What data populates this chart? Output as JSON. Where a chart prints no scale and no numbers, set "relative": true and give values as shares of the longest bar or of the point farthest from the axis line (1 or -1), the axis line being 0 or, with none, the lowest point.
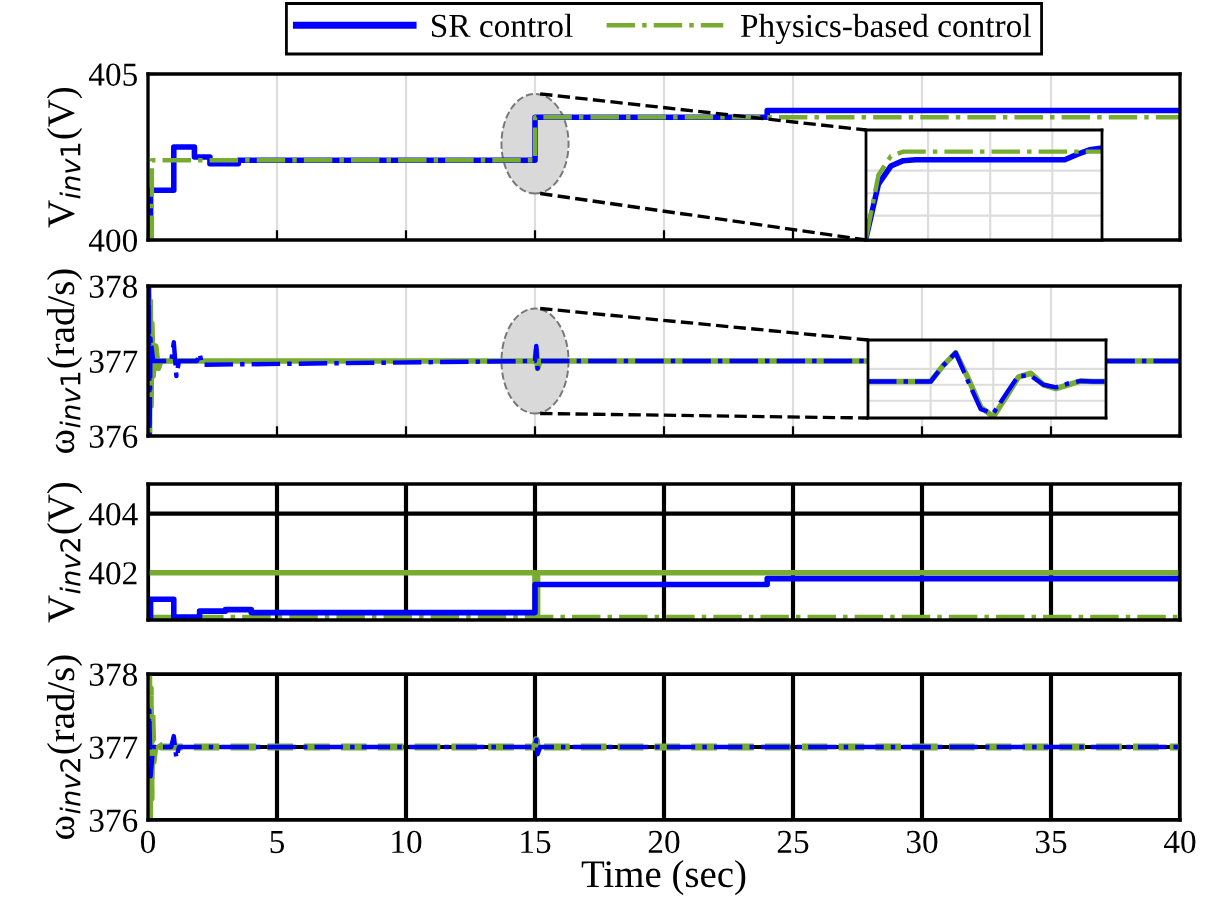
{
  "chart_data": [
    {
      "type": "line",
      "ylabel": "V$_{inv1}$(V)",
      "xlim": [
        0,
        40
      ],
      "xticks": [
        {
          "value": 0,
          "label": null
        },
        {
          "value": 5,
          "label": null
        },
        {
          "value": 10,
          "label": null
        },
        {
          "value": 15,
          "label": null
        },
        {
          "value": 20,
          "label": null
        },
        {
          "value": 25,
          "label": null
        },
        {
          "value": 30,
          "label": null
        },
        {
          "value": 35,
          "label": null
        },
        {
          "value": 40,
          "label": null
        }
      ],
      "ylim": [
        400,
        405
      ],
      "yticks": [
        400,
        405
      ],
      "tick_labels": "y",
      "grid": true,
      "legend": "top",
      "series": [
        {
          "name": "SR control",
          "type": "step",
          "color": "#0000ff",
          "line_style": "solid",
          "x": [
            0,
            0.1,
            1.0,
            1.8,
            2.4,
            3.5,
            15.0,
            24.0,
            40
          ],
          "values": [
            400,
            401.5,
            402.8,
            402.5,
            402.3,
            402.4,
            403.7,
            403.9,
            403.9
          ]
        },
        {
          "name": "Physics-based control",
          "type": "step",
          "color": "#77ac30",
          "line_style": "dashdot",
          "x": [
            0,
            0.15,
            15.0,
            40
          ],
          "values": [
            400,
            402.4,
            403.7,
            403.7
          ]
        }
      ]
    },
    {
      "type": "line",
      "ylabel": "ω$_{inv1}$(rad/s)",
      "xlim": [
        0,
        40
      ],
      "xticks": [
        {
          "value": 0,
          "label": null
        },
        {
          "value": 5,
          "label": null
        },
        {
          "value": 10,
          "label": null
        },
        {
          "value": 15,
          "label": null
        },
        {
          "value": 20,
          "label": null
        },
        {
          "value": 25,
          "label": null
        },
        {
          "value": 30,
          "label": null
        },
        {
          "value": 35,
          "label": null
        },
        {
          "value": 40,
          "label": null
        }
      ],
      "ylim": [
        376,
        378
      ],
      "yticks": [
        376,
        377,
        378
      ],
      "tick_labels": "y",
      "grid": true,
      "series": [
        {
          "name": "Physics-based control",
          "color": "#77ac30",
          "line_style": "solid",
          "x": [
            0,
            0.03,
            0.06,
            0.09,
            0.12,
            0.15,
            0.2,
            0.3,
            0.4,
            0.5,
            15.0,
            15.05,
            15.1,
            15.2,
            40
          ],
          "values": [
            377,
            378,
            376,
            377.8,
            376.4,
            377.5,
            376.8,
            377.2,
            376.9,
            377,
            377,
            377.15,
            376.9,
            377,
            377
          ]
        },
        {
          "name": "SR control",
          "color": "#0000ff",
          "line_style": "dashdot",
          "x": [
            0,
            0.03,
            0.06,
            0.1,
            0.2,
            0.9,
            1.0,
            1.1,
            1.2,
            1.9,
            2.0,
            2.1,
            15.0,
            15.05,
            15.1,
            15.2,
            40
          ],
          "values": [
            377,
            378,
            376,
            377.3,
            377,
            377,
            377.25,
            376.8,
            377,
            377,
            377.1,
            376.95,
            377,
            377.2,
            376.9,
            377,
            377
          ]
        }
      ]
    },
    {
      "type": "line",
      "ylabel": "V$_{inv2}$(V)",
      "xlim": [
        0,
        40
      ],
      "xticks": [
        {
          "value": 0,
          "label": null
        },
        {
          "value": 5,
          "label": null
        },
        {
          "value": 10,
          "label": null
        },
        {
          "value": 15,
          "label": null
        },
        {
          "value": 20,
          "label": null
        },
        {
          "value": 25,
          "label": null
        },
        {
          "value": 30,
          "label": null
        },
        {
          "value": 35,
          "label": null
        },
        {
          "value": 40,
          "label": null
        }
      ],
      "ylim": [
        400.4,
        405
      ],
      "yticks": [
        402,
        404
      ],
      "tick_labels": "y",
      "grid": true,
      "series": [
        {
          "type": "step",
          "color": "#77ac30",
          "line_style": "solid",
          "x": [
            0,
            15.0,
            15.1,
            40
          ],
          "values": [
            402,
            400.5,
            402,
            402
          ]
        },
        {
          "name": "Physics-based control",
          "color": "#77ac30",
          "line_style": "dashdot",
          "x": [
            0,
            40
          ],
          "values": [
            400.5,
            400.5
          ]
        },
        {
          "name": "SR control",
          "type": "step",
          "color": "#0000ff",
          "line_style": "solid",
          "x": [
            0,
            0.1,
            1.0,
            2.0,
            3.0,
            4.0,
            15.0,
            24.0,
            40
          ],
          "values": [
            400.5,
            401.1,
            400.5,
            400.7,
            400.75,
            400.65,
            401.6,
            401.8,
            401.8
          ]
        }
      ]
    },
    {
      "type": "line",
      "ylabel": "ω$_{inv2}$(rad/s)",
      "xlabel": "Time (sec)",
      "xlim": [
        0,
        40
      ],
      "xticks": [
        0,
        5,
        10,
        15,
        20,
        25,
        30,
        35,
        40
      ],
      "ylim": [
        376,
        378
      ],
      "yticks": [
        376,
        377,
        378
      ],
      "grid": true,
      "series": [
        {
          "name": "Physics-based control",
          "color": "#77ac30",
          "line_style": "dashed",
          "x": [
            0,
            0.03,
            0.06,
            0.09,
            0.12,
            0.15,
            0.2,
            0.3,
            0.5,
            15.0,
            15.05,
            15.1,
            15.2,
            40
          ],
          "values": [
            377,
            378,
            376,
            377.8,
            376.3,
            377.5,
            376.8,
            377.1,
            377,
            377,
            377.1,
            376.95,
            377,
            377
          ]
        },
        {
          "name": "SR control",
          "color": "#0000ff",
          "line_style": "dashdot",
          "x": [
            0,
            0.05,
            0.1,
            0.2,
            0.9,
            1.0,
            1.1,
            1.2,
            15.0,
            15.05,
            15.1,
            15.2,
            40
          ],
          "values": [
            377,
            377.5,
            376.6,
            377,
            377,
            377.15,
            376.85,
            377,
            377,
            377.1,
            376.9,
            377,
            377
          ]
        }
      ]
    },
    {
      "type": "line",
      "relative": true,
      "categories": [
        null,
        null,
        null,
        null,
        null,
        null,
        null,
        null,
        null,
        null,
        null,
        null,
        null,
        null,
        null,
        null,
        null,
        null,
        null,
        null
      ],
      "grid": true,
      "series": [
        {
          "name": "SR control",
          "color": "#0000ff",
          "line_style": "solid",
          "values": [
            0,
            0.6,
            0.8,
            0.86,
            0.87,
            0.87,
            0.87,
            0.87,
            0.87,
            0.87,
            0.87,
            0.87,
            0.87,
            0.87,
            0.87,
            0.87,
            0.87,
            0.93,
            0.98,
            1.0
          ]
        },
        {
          "name": "Physics-based control",
          "color": "#77ac30",
          "line_style": "dashdot",
          "values": [
            0,
            0.7,
            0.91,
            0.96,
            0.96,
            0.96,
            0.96,
            0.96,
            0.96,
            0.96,
            0.96,
            0.96,
            0.96,
            0.96,
            0.96,
            0.96,
            0.96,
            0.96,
            0.96,
            0.96
          ]
        }
      ]
    },
    {
      "type": "line",
      "relative": true,
      "categories": [
        null,
        null,
        null,
        null,
        null,
        null,
        null,
        null,
        null,
        null,
        null,
        null,
        null,
        null,
        null,
        null,
        null,
        null,
        null,
        null
      ],
      "grid": true,
      "series": [
        {
          "name": "Physics-based control",
          "color": "#77ac30",
          "line_style": "solid",
          "values": [
            0.55,
            0.55,
            0.55,
            0.55,
            0.55,
            0.55,
            0.8,
            1.0,
            0.6,
            0.15,
            0.0,
            0.3,
            0.62,
            0.68,
            0.5,
            0.44,
            0.5,
            0.56,
            0.55,
            0.55
          ]
        },
        {
          "name": "SR control",
          "color": "#0000ff",
          "line_style": "dashdot",
          "values": [
            0.55,
            0.55,
            0.55,
            0.55,
            0.55,
            0.55,
            0.8,
            1.0,
            0.55,
            0.12,
            0.05,
            0.35,
            0.64,
            0.64,
            0.5,
            0.46,
            0.52,
            0.56,
            0.55,
            0.55
          ]
        }
      ]
    }
  ]
}
